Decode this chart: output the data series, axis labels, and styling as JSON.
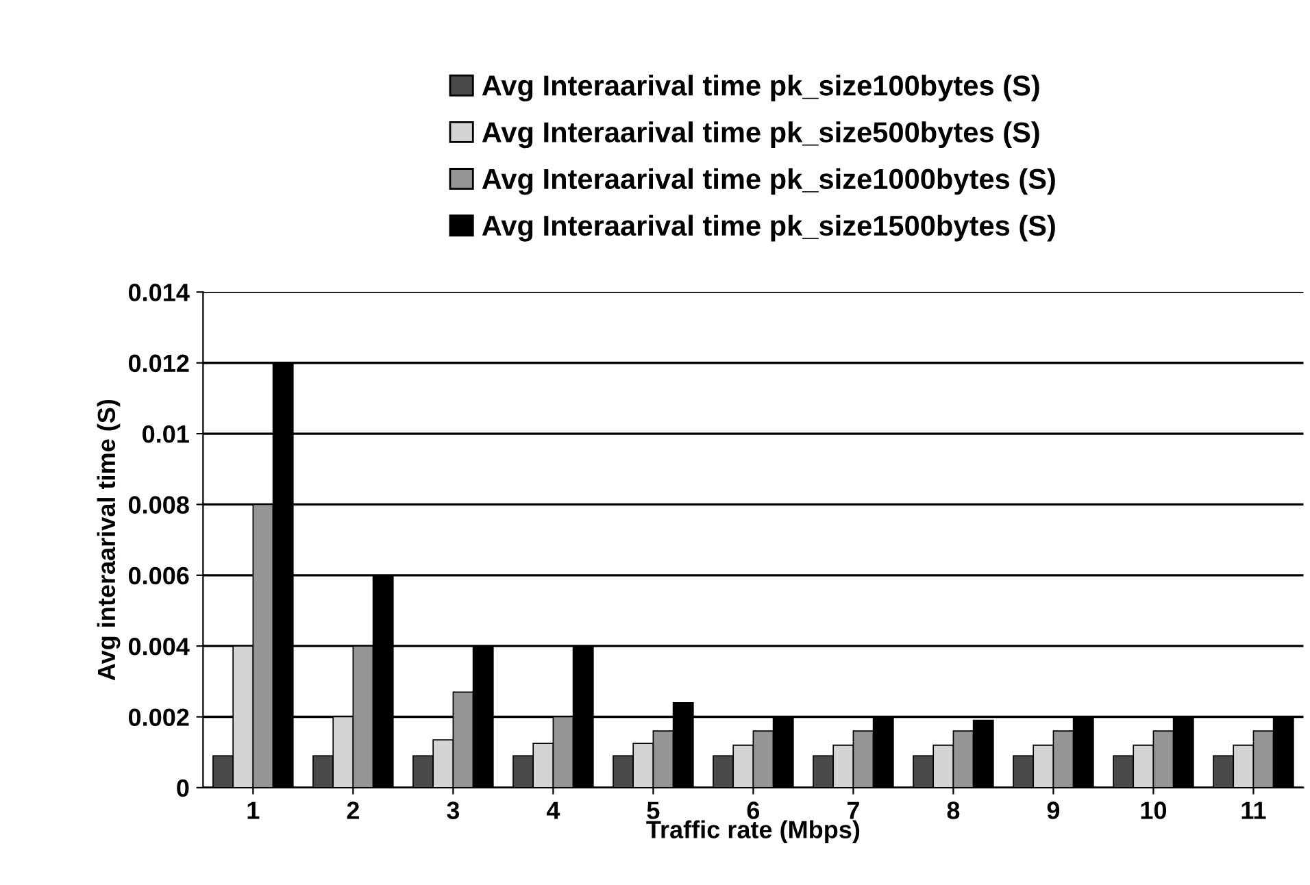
{
  "chart_data": {
    "type": "bar",
    "xlabel": "Traffic rate (Mbps)",
    "ylabel": "Avg interaarival time (S)",
    "categories": [
      "1",
      "2",
      "3",
      "4",
      "5",
      "6",
      "7",
      "8",
      "9",
      "10",
      "11"
    ],
    "series": [
      {
        "name": "Avg Interaarival time pk_size100bytes (S)",
        "color": "#4a4a4a",
        "values": [
          0.0009,
          0.0009,
          0.0009,
          0.0009,
          0.0009,
          0.0009,
          0.0009,
          0.0009,
          0.0009,
          0.0009,
          0.0009
        ]
      },
      {
        "name": "Avg Interaarival time pk_size500bytes (S)",
        "color": "#d4d4d4",
        "values": [
          0.004,
          0.002,
          0.00135,
          0.00125,
          0.00125,
          0.0012,
          0.0012,
          0.0012,
          0.0012,
          0.0012,
          0.0012
        ]
      },
      {
        "name": "Avg Interaarival time pk_size1000bytes (S)",
        "color": "#959595",
        "values": [
          0.008,
          0.004,
          0.0027,
          0.002,
          0.0016,
          0.0016,
          0.0016,
          0.0016,
          0.0016,
          0.0016,
          0.0016
        ]
      },
      {
        "name": "Avg Interaarival time pk_size1500bytes (S)",
        "color": "#000000",
        "values": [
          0.012,
          0.006,
          0.004,
          0.004,
          0.0024,
          0.002,
          0.002,
          0.0019,
          0.002,
          0.002,
          0.002
        ]
      }
    ],
    "ylim": [
      0,
      0.014
    ],
    "yticks": [
      0,
      0.002,
      0.004,
      0.006,
      0.008,
      {
        "value": 0.01,
        "label": "0.01"
      },
      0.012,
      0.014
    ],
    "grid": "y",
    "legend": "top"
  }
}
